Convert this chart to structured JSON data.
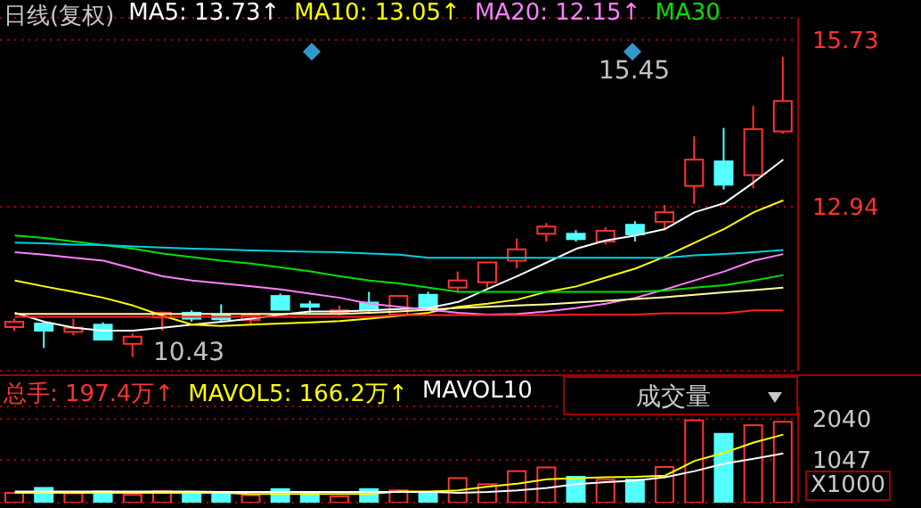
{
  "chart_data": [
    {
      "type": "candlestick",
      "title": "日线(复权)",
      "legend": "top",
      "grid": "y",
      "tick_labels": "y",
      "categories": [
        null,
        null,
        null,
        null,
        null,
        null,
        null,
        null,
        null,
        null,
        null,
        null,
        null,
        null,
        null,
        null,
        null,
        null,
        null,
        null,
        null,
        null,
        null,
        null,
        null,
        null,
        null
      ],
      "ylim": [
        10.2,
        16.1
      ],
      "yticks": [
        15.73,
        12.94
      ],
      "annotations": [
        "15.45",
        "10.43"
      ],
      "series": [
        {
          "type": "line",
          "name": "MA5: 13.73↑",
          "color": "#ffffff",
          "values": [
            11.17,
            11.02,
            10.92,
            10.87,
            10.87,
            10.92,
            10.97,
            11.02,
            11.07,
            11.14,
            11.19,
            11.19,
            11.21,
            11.23,
            11.25,
            11.35,
            11.57,
            11.78,
            12.01,
            12.24,
            12.38,
            12.46,
            12.57,
            12.85,
            13.0,
            13.35,
            13.73
          ]
        },
        {
          "type": "line",
          "name": "MA10: 13.05↑",
          "color": "#ffff00",
          "values": [
            11.71,
            11.61,
            11.52,
            11.42,
            11.29,
            11.12,
            10.97,
            10.95,
            10.97,
            10.99,
            11.01,
            11.03,
            11.07,
            11.12,
            11.17,
            11.27,
            11.32,
            11.39,
            11.52,
            11.61,
            11.76,
            11.91,
            12.11,
            12.34,
            12.57,
            12.85,
            13.05
          ]
        },
        {
          "type": "line",
          "name": "MA20: 12.15↑",
          "color": "#ff80ff",
          "values": [
            12.18,
            12.14,
            12.09,
            12.04,
            11.91,
            11.78,
            11.71,
            11.66,
            11.61,
            11.56,
            11.49,
            11.42,
            11.32,
            11.27,
            11.22,
            11.17,
            11.14,
            11.15,
            11.19,
            11.25,
            11.32,
            11.42,
            11.56,
            11.71,
            11.86,
            12.04,
            12.15
          ]
        },
        {
          "type": "line",
          "name": "MA30",
          "color": "#00e000",
          "values": [
            12.46,
            12.42,
            12.36,
            12.3,
            12.24,
            12.16,
            12.1,
            12.04,
            11.99,
            11.93,
            11.86,
            11.78,
            11.71,
            11.66,
            11.59,
            11.52,
            11.52,
            11.52,
            11.52,
            11.52,
            11.52,
            11.52,
            11.54,
            11.59,
            11.63,
            11.71,
            11.8
          ]
        },
        {
          "type": "line",
          "color": "#00d0e0",
          "values": [
            12.34,
            12.33,
            12.31,
            12.3,
            12.28,
            12.26,
            12.24,
            12.23,
            12.21,
            12.2,
            12.19,
            12.18,
            12.16,
            12.14,
            12.09,
            12.09,
            12.09,
            12.09,
            12.09,
            12.09,
            12.09,
            12.09,
            12.09,
            12.13,
            12.15,
            12.18,
            12.22
          ]
        },
        {
          "type": "line",
          "color": "#ffffa0",
          "values": [
            11.15,
            11.15,
            11.15,
            11.15,
            11.15,
            11.15,
            11.15,
            11.15,
            11.15,
            11.15,
            11.15,
            11.15,
            11.17,
            11.19,
            11.22,
            11.25,
            11.27,
            11.29,
            11.31,
            11.34,
            11.37,
            11.4,
            11.43,
            11.47,
            11.51,
            11.55,
            11.59
          ]
        },
        {
          "type": "line",
          "color": "#ff2020",
          "values": [
            11.1,
            11.1,
            11.1,
            11.1,
            11.1,
            11.1,
            11.1,
            11.1,
            11.1,
            11.1,
            11.1,
            11.1,
            11.1,
            11.13,
            11.13,
            11.13,
            11.13,
            11.13,
            11.13,
            11.14,
            11.14,
            11.14,
            11.16,
            11.16,
            11.16,
            11.21,
            11.21
          ]
        },
        {
          "type": "candlestick",
          "colors": [
            "#ff3232",
            "#54ffff",
            "#ff3232",
            "#54ffff",
            "#ff3232",
            "#ff3232",
            "#54ffff",
            "#54ffff",
            "#ff3232",
            "#54ffff",
            "#54ffff",
            "#ff3232",
            "#54ffff",
            "#ff3232",
            "#54ffff",
            "#ff3232",
            "#ff3232",
            "#ff3232",
            "#ff3232",
            "#54ffff",
            "#ff3232",
            "#54ffff",
            "#ff3232",
            "#ff3232",
            "#54ffff",
            "#ff3232",
            "#ff3232"
          ],
          "ohlc": [
            [
              10.93,
              11.07,
              10.87,
              11.02
            ],
            [
              10.99,
              11.01,
              10.58,
              10.87
            ],
            [
              10.85,
              11.07,
              10.79,
              10.92
            ],
            [
              10.97,
              11.01,
              10.72,
              10.72
            ],
            [
              10.65,
              10.82,
              10.43,
              10.77
            ],
            [
              11.09,
              11.19,
              10.87,
              11.17
            ],
            [
              11.17,
              11.21,
              11.02,
              11.07
            ],
            [
              11.14,
              11.31,
              11.02,
              11.06
            ],
            [
              11.05,
              11.17,
              10.99,
              11.13
            ],
            [
              11.45,
              11.49,
              11.21,
              11.22
            ],
            [
              11.31,
              11.37,
              11.17,
              11.27
            ],
            [
              11.2,
              11.29,
              11.13,
              11.21
            ],
            [
              11.34,
              11.52,
              11.19,
              11.21
            ],
            [
              11.14,
              11.45,
              11.12,
              11.45
            ],
            [
              11.47,
              11.52,
              11.21,
              11.24
            ],
            [
              11.59,
              11.86,
              11.52,
              11.71
            ],
            [
              11.68,
              12.01,
              11.59,
              12.01
            ],
            [
              12.04,
              12.41,
              11.91,
              12.23
            ],
            [
              12.49,
              12.67,
              12.36,
              12.61
            ],
            [
              12.49,
              12.55,
              12.36,
              12.4
            ],
            [
              12.36,
              12.6,
              12.31,
              12.54
            ],
            [
              12.64,
              12.7,
              12.36,
              12.48
            ],
            [
              12.69,
              12.97,
              12.55,
              12.85
            ],
            [
              13.29,
              14.12,
              12.99,
              13.73
            ],
            [
              13.7,
              14.26,
              13.23,
              13.31
            ],
            [
              13.47,
              14.63,
              13.25,
              14.24
            ],
            [
              14.2,
              15.45,
              14.16,
              14.71
            ]
          ]
        }
      ]
    },
    {
      "type": "bar",
      "legend": "top",
      "grid": "y",
      "tick_labels": "y",
      "ylabel": "X1000",
      "annotations": [
        "成交量"
      ],
      "categories": [
        null,
        null,
        null,
        null,
        null,
        null,
        null,
        null,
        null,
        null,
        null,
        null,
        null,
        null,
        null,
        null,
        null,
        null,
        null,
        null,
        null,
        null,
        null,
        null,
        null,
        null,
        null
      ],
      "ylim": [
        0,
        2350
      ],
      "yticks": [
        2040,
        1047
      ],
      "series": [
        {
          "type": "bar",
          "name": "总手: 197.4万↑",
          "color": "#ff3232",
          "colors": [
            "#ff3232",
            "#54ffff",
            "#ff3232",
            "#54ffff",
            "#ff3232",
            "#ff3232",
            "#54ffff",
            "#54ffff",
            "#ff3232",
            "#54ffff",
            "#54ffff",
            "#ff3232",
            "#54ffff",
            "#ff3232",
            "#54ffff",
            "#ff3232",
            "#ff3232",
            "#ff3232",
            "#ff3232",
            "#54ffff",
            "#ff3232",
            "#54ffff",
            "#ff3232",
            "#ff3232",
            "#54ffff",
            "#ff3232",
            "#ff3232"
          ],
          "values": [
            240,
            360,
            230,
            270,
            190,
            280,
            250,
            230,
            180,
            330,
            240,
            150,
            330,
            300,
            230,
            600,
            450,
            770,
            860,
            630,
            560,
            560,
            870,
            2010,
            1680,
            1890,
            1974
          ]
        },
        {
          "type": "line",
          "name": "MAVOL5: 166.2万↑",
          "color": "#ffff00",
          "values": [
            240,
            240,
            240,
            240,
            240,
            240,
            240,
            240,
            210,
            210,
            210,
            210,
            210,
            270,
            270,
            300,
            390,
            460,
            570,
            600,
            620,
            630,
            660,
            1020,
            1220,
            1470,
            1662
          ]
        },
        {
          "type": "line",
          "name": "MAVOL10",
          "color": "#ffffff",
          "values": [
            270,
            270,
            270,
            270,
            270,
            270,
            270,
            260,
            260,
            260,
            260,
            260,
            260,
            260,
            260,
            240,
            260,
            300,
            360,
            450,
            500,
            540,
            620,
            770,
            950,
            1070,
            1200
          ]
        }
      ]
    }
  ]
}
